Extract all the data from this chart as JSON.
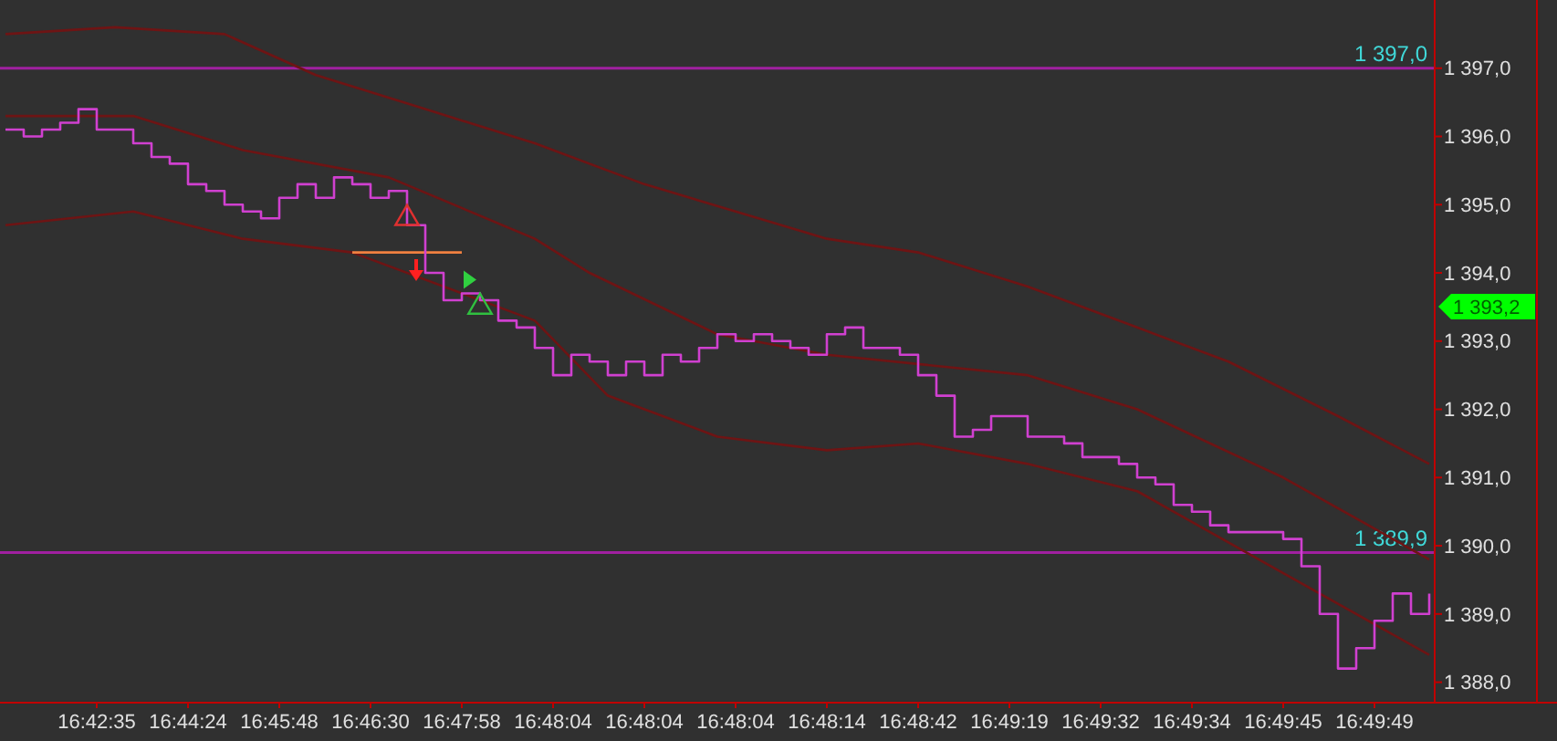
{
  "chart_data": {
    "type": "step",
    "ylim": [
      1387.7,
      1398.0
    ],
    "categories": [
      null,
      null,
      null,
      null,
      null,
      "16:42:35",
      null,
      null,
      null,
      null,
      "16:44:24",
      null,
      null,
      null,
      null,
      "16:45:48",
      null,
      null,
      null,
      null,
      "16:46:30",
      null,
      null,
      null,
      null,
      "16:47:58",
      null,
      null,
      null,
      null,
      "16:48:04",
      null,
      null,
      null,
      null,
      "16:48:04",
      null,
      null,
      null,
      null,
      "16:48:04",
      null,
      null,
      null,
      null,
      "16:48:14",
      null,
      null,
      null,
      null,
      "16:48:42",
      null,
      null,
      null,
      null,
      "16:49:19",
      null,
      null,
      null,
      null,
      "16:49:32",
      null,
      null,
      null,
      null,
      "16:49:34",
      null,
      null,
      null,
      null,
      "16:49:45",
      null,
      null,
      null,
      null,
      "16:49:49",
      null,
      null,
      null
    ],
    "yticks": [
      {
        "value": 1388,
        "label": "1 388,0"
      },
      {
        "value": 1389,
        "label": "1 389,0"
      },
      {
        "value": 1390,
        "label": "1 390,0"
      },
      {
        "value": 1391,
        "label": "1 391,0"
      },
      {
        "value": 1392,
        "label": "1 392,0"
      },
      {
        "value": 1393,
        "label": "1 393,0"
      },
      {
        "value": 1394,
        "label": "1 394,0"
      },
      {
        "value": 1395,
        "label": "1 395,0"
      },
      {
        "value": 1396,
        "label": "1 396,0"
      },
      {
        "value": 1397,
        "label": "1 397,0"
      }
    ],
    "grid": false,
    "series": [
      {
        "type": "line",
        "color": "#6e1414",
        "values": [
          1397.5,
          null,
          null,
          null,
          null,
          null,
          1397.6,
          null,
          null,
          null,
          null,
          null,
          1397.5,
          null,
          null,
          null,
          null,
          1396.9,
          null,
          null,
          null,
          null,
          null,
          1396.4,
          null,
          null,
          null,
          null,
          null,
          1395.9,
          null,
          null,
          null,
          null,
          null,
          1395.3,
          null,
          null,
          null,
          null,
          1394.9,
          null,
          null,
          null,
          null,
          1394.5,
          null,
          null,
          null,
          null,
          1394.3,
          null,
          null,
          null,
          null,
          null,
          1393.8,
          null,
          null,
          null,
          null,
          null,
          1393.2,
          null,
          null,
          null,
          null,
          1392.7,
          null,
          null,
          null,
          null,
          null,
          1391.9,
          null,
          null,
          null,
          null,
          1391.2
        ]
      },
      {
        "type": "line",
        "color": "#6e1414",
        "values": [
          1396.3,
          null,
          null,
          null,
          null,
          null,
          null,
          1396.3,
          null,
          null,
          null,
          null,
          null,
          1395.8,
          null,
          null,
          null,
          null,
          null,
          null,
          null,
          1395.4,
          null,
          null,
          null,
          null,
          null,
          null,
          null,
          1394.5,
          null,
          null,
          1394.0,
          null,
          null,
          null,
          null,
          null,
          null,
          1393.1,
          null,
          null,
          null,
          null,
          null,
          1392.8,
          null,
          null,
          null,
          null,
          null,
          null,
          null,
          null,
          null,
          null,
          1392.5,
          null,
          null,
          null,
          null,
          null,
          1392.0,
          null,
          null,
          null,
          null,
          null,
          null,
          null,
          1391.0,
          null,
          null,
          null,
          null,
          null,
          null,
          null,
          1389.8
        ]
      },
      {
        "type": "line",
        "color": "#6e1414",
        "values": [
          1394.7,
          null,
          null,
          null,
          null,
          null,
          null,
          1394.9,
          null,
          null,
          null,
          null,
          null,
          1394.5,
          null,
          null,
          null,
          null,
          null,
          1394.3,
          null,
          null,
          null,
          null,
          null,
          null,
          null,
          null,
          null,
          1393.3,
          null,
          null,
          null,
          1392.2,
          null,
          null,
          null,
          null,
          null,
          1391.6,
          null,
          null,
          null,
          null,
          null,
          1391.4,
          null,
          null,
          null,
          null,
          1391.5,
          null,
          null,
          null,
          null,
          null,
          1391.2,
          null,
          null,
          null,
          null,
          null,
          1390.8,
          null,
          null,
          null,
          null,
          null,
          1389.9,
          null,
          null,
          null,
          null,
          null,
          null,
          null,
          null,
          null,
          1388.4
        ]
      },
      {
        "type": "line",
        "color": "#f08040",
        "values": [
          null,
          null,
          null,
          null,
          null,
          null,
          null,
          null,
          null,
          null,
          null,
          null,
          null,
          null,
          null,
          null,
          null,
          null,
          null,
          1394.3,
          null,
          null,
          null,
          null,
          null,
          1394.3,
          null,
          null,
          null,
          null,
          null,
          null,
          null,
          null,
          null,
          null,
          null,
          null,
          null,
          null,
          null,
          null,
          null,
          null,
          null,
          null,
          null,
          null,
          null,
          null,
          null,
          null,
          null,
          null,
          null,
          null,
          null,
          null,
          null,
          null,
          null,
          null,
          null,
          null,
          null,
          null,
          null,
          null,
          null,
          null,
          null,
          null,
          null,
          null,
          null,
          null,
          null,
          null,
          null
        ]
      },
      {
        "color": "#d040d0",
        "values": [
          1396.1,
          1396.0,
          1396.1,
          1396.2,
          1396.4,
          1396.1,
          1396.1,
          1395.9,
          1395.7,
          1395.6,
          1395.3,
          1395.2,
          1395.0,
          1394.9,
          1394.8,
          1395.1,
          1395.3,
          1395.1,
          1395.4,
          1395.3,
          1395.1,
          1395.2,
          1394.7,
          1394.0,
          1393.6,
          1393.7,
          1393.6,
          1393.3,
          1393.2,
          1392.9,
          1392.5,
          1392.8,
          1392.7,
          1392.5,
          1392.7,
          1392.5,
          1392.8,
          1392.7,
          1392.9,
          1393.1,
          1393.0,
          1393.1,
          1393.0,
          1392.9,
          1392.8,
          1393.1,
          1393.2,
          1392.9,
          1392.9,
          1392.8,
          1392.5,
          1392.2,
          1391.6,
          1391.7,
          1391.9,
          1391.9,
          1391.6,
          1391.6,
          1391.5,
          1391.3,
          1391.3,
          1391.2,
          1391.0,
          1390.9,
          1390.6,
          1390.5,
          1390.3,
          1390.2,
          1390.2,
          1390.2,
          1390.1,
          1389.7,
          1389.0,
          1388.2,
          1388.5,
          1388.9,
          1389.3,
          1389.0,
          1389.3
        ]
      },
      {
        "type": "scatter",
        "color": "#e03030",
        "marker": "triangle",
        "values": [
          null,
          null,
          null,
          null,
          null,
          null,
          null,
          null,
          null,
          null,
          null,
          null,
          null,
          null,
          null,
          null,
          null,
          null,
          null,
          null,
          null,
          null,
          1394.8,
          null,
          null,
          null,
          null,
          null,
          null,
          null,
          null,
          null,
          null,
          null,
          null,
          null,
          null,
          null,
          null,
          null,
          null,
          null,
          null,
          null,
          null,
          null,
          null,
          null,
          null,
          null,
          null,
          null,
          null,
          null,
          null,
          null,
          null,
          null,
          null,
          null,
          null,
          null,
          null,
          null,
          null,
          null,
          null,
          null,
          null,
          null,
          null,
          null,
          null,
          null,
          null,
          null,
          null,
          null,
          null
        ]
      },
      {
        "type": "scatter",
        "color": "#30c040",
        "marker": "triangle",
        "values": [
          null,
          null,
          null,
          null,
          null,
          null,
          null,
          null,
          null,
          null,
          null,
          null,
          null,
          null,
          null,
          null,
          null,
          null,
          null,
          null,
          null,
          null,
          null,
          null,
          null,
          null,
          1393.5,
          null,
          null,
          null,
          null,
          null,
          null,
          null,
          null,
          null,
          null,
          null,
          null,
          null,
          null,
          null,
          null,
          null,
          null,
          null,
          null,
          null,
          null,
          null,
          null,
          null,
          null,
          null,
          null,
          null,
          null,
          null,
          null,
          null,
          null,
          null,
          null,
          null,
          null,
          null,
          null,
          null,
          null,
          null,
          null,
          null,
          null,
          null,
          null,
          null,
          null,
          null,
          null
        ]
      }
    ],
    "ref_lines": [
      {
        "axis": "y",
        "value": 1397.0,
        "label": "1 397,0",
        "color": "#a020a0"
      },
      {
        "axis": "y",
        "value": 1389.9,
        "label": "1 389,9",
        "color": "#a020a0"
      }
    ],
    "annotations": [
      "1 393,2"
    ]
  }
}
